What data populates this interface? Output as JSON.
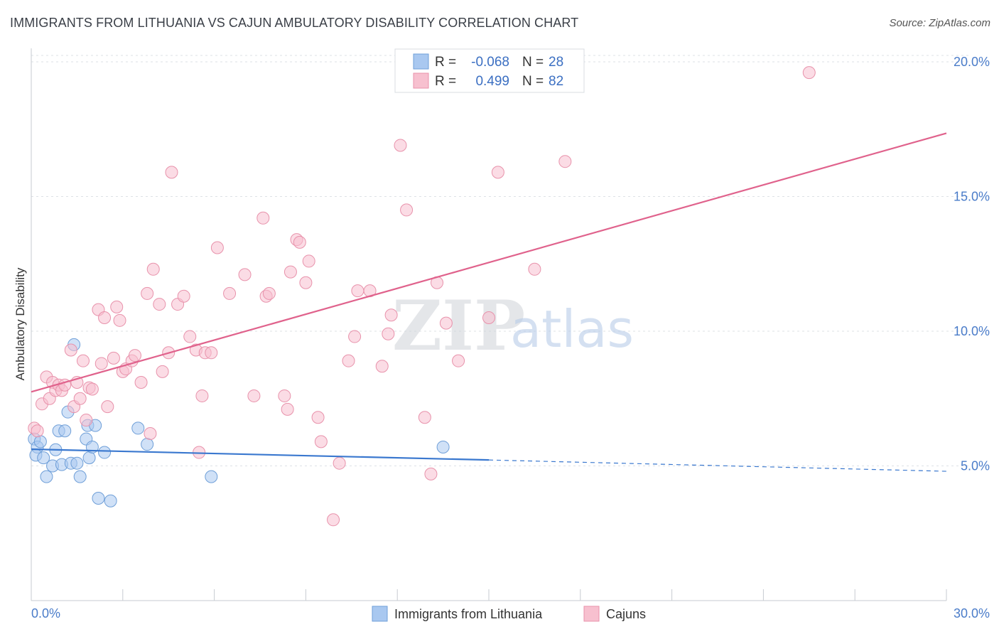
{
  "header": {
    "title": "IMMIGRANTS FROM LITHUANIA VS CAJUN AMBULATORY DISABILITY CORRELATION CHART",
    "source": "Source: ZipAtlas.com"
  },
  "watermark": {
    "zip": "ZIP",
    "atlas": "atlas"
  },
  "legend": {
    "rows": [
      {
        "r_label": "R =",
        "r_value": "-0.068",
        "n_label": "N =",
        "n_value": "28",
        "color": "#a9c8f0",
        "stroke": "#6f9fd8"
      },
      {
        "r_label": "R =",
        "r_value": "0.499",
        "n_label": "N =",
        "n_value": "82",
        "color": "#f7c0cf",
        "stroke": "#e892ab"
      }
    ]
  },
  "bottom_legend": {
    "items": [
      {
        "label": "Immigrants from Lithuania",
        "color": "#a9c8f0",
        "stroke": "#6f9fd8"
      },
      {
        "label": "Cajuns",
        "color": "#f7c0cf",
        "stroke": "#e892ab"
      }
    ]
  },
  "chart_data": {
    "type": "scatter",
    "title": "IMMIGRANTS FROM LITHUANIA VS CAJUN AMBULATORY DISABILITY CORRELATION CHART",
    "xlabel": "",
    "ylabel": "Ambulatory Disability",
    "xlim": [
      0,
      30
    ],
    "ylim": [
      0,
      20.5
    ],
    "x_tick_labels": [
      "0.0%",
      "30.0%"
    ],
    "y_ticks": [
      5,
      10,
      15,
      20
    ],
    "y_tick_labels": [
      "5.0%",
      "10.0%",
      "15.0%",
      "20.0%"
    ],
    "grid": true,
    "series": [
      {
        "name": "Immigrants from Lithuania",
        "color": "#a9c8f0",
        "stroke": "#6f9fd8",
        "line_color": "#3a78cf",
        "trend": {
          "x0": 0,
          "y0": 5.62,
          "x1": 15,
          "y1": 5.22,
          "dash_to_x": 30,
          "dash_to_y": 4.8
        },
        "points": [
          [
            0.1,
            6.0
          ],
          [
            0.2,
            5.7
          ],
          [
            0.3,
            5.9
          ],
          [
            0.15,
            5.4
          ],
          [
            0.4,
            5.3
          ],
          [
            0.5,
            4.6
          ],
          [
            0.7,
            5.0
          ],
          [
            0.8,
            5.6
          ],
          [
            0.9,
            6.3
          ],
          [
            1.0,
            5.05
          ],
          [
            1.1,
            6.3
          ],
          [
            1.2,
            7.0
          ],
          [
            1.3,
            5.1
          ],
          [
            1.4,
            9.5
          ],
          [
            1.5,
            5.1
          ],
          [
            1.6,
            4.6
          ],
          [
            1.8,
            6.0
          ],
          [
            1.85,
            6.5
          ],
          [
            1.9,
            5.3
          ],
          [
            2.0,
            5.7
          ],
          [
            2.1,
            6.5
          ],
          [
            2.2,
            3.8
          ],
          [
            2.4,
            5.5
          ],
          [
            2.6,
            3.7
          ],
          [
            3.5,
            6.4
          ],
          [
            3.8,
            5.8
          ],
          [
            5.9,
            4.6
          ],
          [
            13.5,
            5.7
          ]
        ]
      },
      {
        "name": "Cajuns",
        "color": "#f7c0cf",
        "stroke": "#e892ab",
        "line_color": "#e0628c",
        "trend": {
          "x0": 0,
          "y0": 7.75,
          "x1": 30,
          "y1": 17.35
        },
        "points": [
          [
            0.1,
            6.4
          ],
          [
            0.2,
            6.3
          ],
          [
            0.35,
            7.3
          ],
          [
            0.5,
            8.3
          ],
          [
            0.6,
            7.5
          ],
          [
            0.7,
            8.1
          ],
          [
            0.8,
            7.8
          ],
          [
            0.9,
            8.0
          ],
          [
            1.0,
            7.8
          ],
          [
            1.1,
            8.0
          ],
          [
            1.3,
            9.3
          ],
          [
            1.4,
            7.2
          ],
          [
            1.5,
            8.1
          ],
          [
            1.6,
            7.5
          ],
          [
            1.7,
            8.9
          ],
          [
            1.8,
            6.7
          ],
          [
            1.9,
            7.9
          ],
          [
            2.0,
            7.85
          ],
          [
            2.2,
            10.8
          ],
          [
            2.3,
            8.8
          ],
          [
            2.4,
            10.5
          ],
          [
            2.5,
            7.2
          ],
          [
            2.7,
            9.0
          ],
          [
            2.8,
            10.9
          ],
          [
            2.9,
            10.4
          ],
          [
            3.0,
            8.5
          ],
          [
            3.1,
            8.6
          ],
          [
            3.3,
            8.9
          ],
          [
            3.4,
            9.1
          ],
          [
            3.6,
            8.1
          ],
          [
            3.8,
            11.4
          ],
          [
            3.9,
            6.2
          ],
          [
            4.0,
            12.3
          ],
          [
            4.2,
            11.0
          ],
          [
            4.3,
            8.5
          ],
          [
            4.5,
            9.2
          ],
          [
            4.6,
            15.9
          ],
          [
            4.8,
            11.0
          ],
          [
            5.0,
            11.3
          ],
          [
            5.2,
            9.8
          ],
          [
            5.4,
            9.3
          ],
          [
            5.5,
            5.5
          ],
          [
            5.6,
            7.6
          ],
          [
            5.7,
            9.2
          ],
          [
            5.9,
            9.2
          ],
          [
            6.1,
            13.1
          ],
          [
            6.5,
            11.4
          ],
          [
            7.0,
            12.1
          ],
          [
            7.3,
            7.6
          ],
          [
            7.6,
            14.2
          ],
          [
            7.7,
            11.3
          ],
          [
            7.8,
            11.4
          ],
          [
            8.3,
            7.6
          ],
          [
            8.4,
            7.1
          ],
          [
            8.5,
            12.2
          ],
          [
            8.7,
            13.4
          ],
          [
            8.8,
            13.3
          ],
          [
            9.0,
            11.8
          ],
          [
            9.1,
            12.6
          ],
          [
            9.4,
            6.8
          ],
          [
            9.5,
            5.9
          ],
          [
            9.9,
            3.0
          ],
          [
            10.1,
            5.1
          ],
          [
            10.4,
            8.9
          ],
          [
            10.6,
            9.8
          ],
          [
            10.7,
            11.5
          ],
          [
            11.1,
            11.5
          ],
          [
            11.5,
            8.7
          ],
          [
            11.7,
            9.9
          ],
          [
            11.8,
            10.6
          ],
          [
            12.1,
            16.9
          ],
          [
            12.3,
            14.5
          ],
          [
            12.9,
            6.8
          ],
          [
            13.1,
            4.7
          ],
          [
            13.3,
            11.8
          ],
          [
            13.6,
            10.3
          ],
          [
            14.0,
            8.9
          ],
          [
            15.0,
            10.5
          ],
          [
            16.5,
            12.3
          ],
          [
            17.5,
            16.3
          ],
          [
            25.5,
            19.6
          ],
          [
            15.3,
            15.9
          ]
        ]
      }
    ]
  }
}
